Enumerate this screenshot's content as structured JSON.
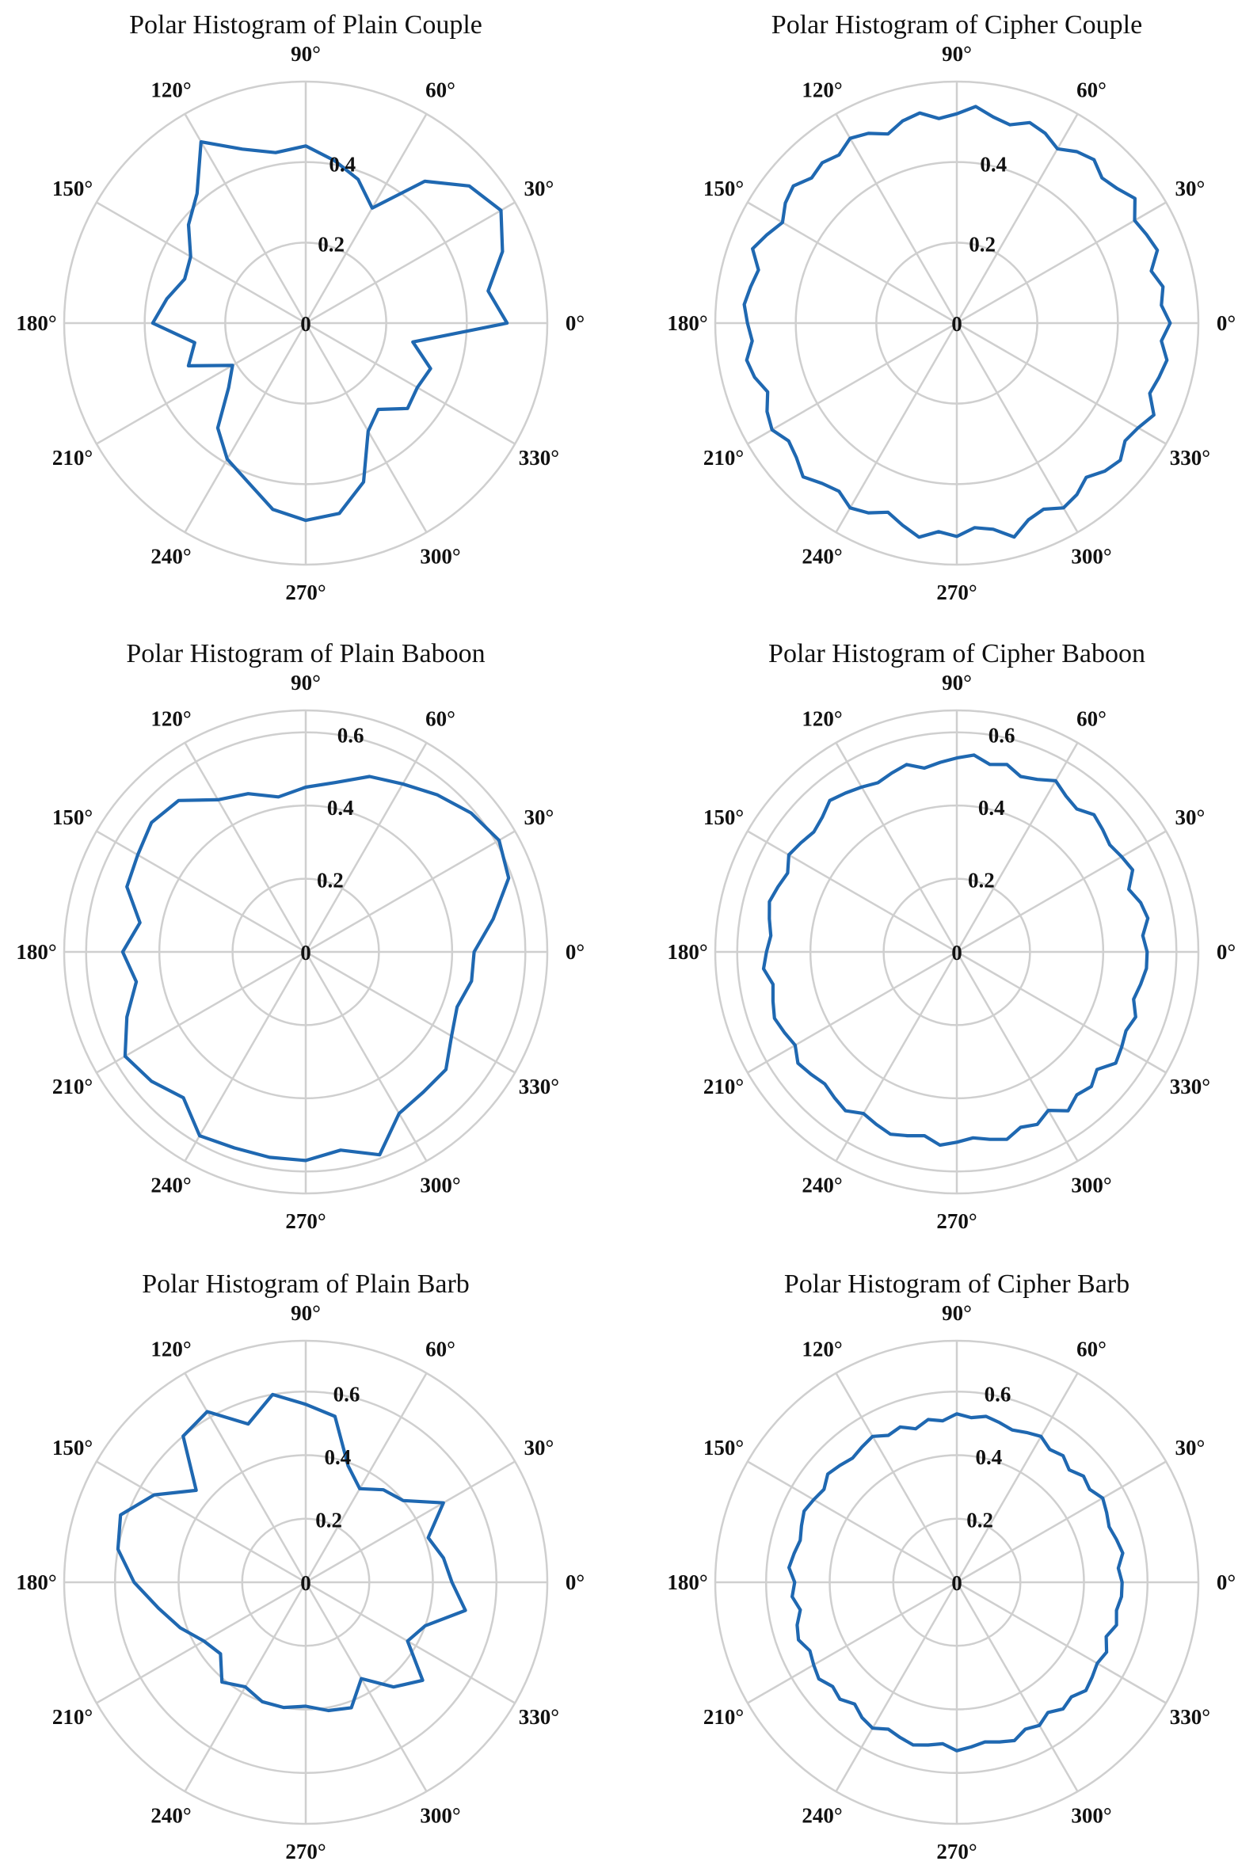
{
  "line_color": "#1f68b1",
  "grid_color": "#cfcfcf",
  "chart_data": [
    {
      "type": "polar-line",
      "title": "Polar Histogram of Plain Couple",
      "theta_tick_labels": [
        "0°",
        "30°",
        "60°",
        "90°",
        "120°",
        "150°",
        "180°",
        "210°",
        "240°",
        "270°",
        "300°",
        "330°"
      ],
      "r_ticks": [
        0.2,
        0.4
      ],
      "r_tick_labels": [
        "0",
        "0.2",
        "0.4"
      ],
      "rlim": [
        0,
        0.6
      ],
      "grid": true,
      "r": [
        0.5,
        0.46,
        0.52,
        0.56,
        0.53,
        0.46,
        0.33,
        0.38,
        0.41,
        0.44,
        0.43,
        0.46,
        0.52,
        0.42,
        0.38,
        0.33,
        0.32,
        0.35,
        0.38,
        0.28,
        0.31,
        0.21,
        0.25,
        0.34,
        0.39,
        0.42,
        0.47,
        0.49,
        0.48,
        0.42,
        0.31,
        0.28,
        0.33,
        0.32,
        0.33,
        0.27
      ]
    },
    {
      "type": "polar-line",
      "title": "Polar Histogram of Cipher Couple",
      "theta_tick_labels": [
        "0°",
        "30°",
        "60°",
        "90°",
        "120°",
        "150°",
        "180°",
        "210°",
        "240°",
        "270°",
        "300°",
        "330°"
      ],
      "r_ticks": [
        0.2,
        0.4
      ],
      "r_tick_labels": [
        "0",
        "0.2",
        "0.4"
      ],
      "rlim": [
        0,
        0.6
      ],
      "grid": true,
      "r": [
        0.53,
        0.51,
        0.52,
        0.5,
        0.53,
        0.52,
        0.51,
        0.54,
        0.52,
        0.51,
        0.53,
        0.52,
        0.5,
        0.52,
        0.53,
        0.51,
        0.52,
        0.54,
        0.52,
        0.51,
        0.53,
        0.52,
        0.5,
        0.52,
        0.53,
        0.51,
        0.52,
        0.51,
        0.53,
        0.52,
        0.5,
        0.52,
        0.54,
        0.51,
        0.52,
        0.53,
        0.52,
        0.51,
        0.53,
        0.52,
        0.5,
        0.52,
        0.53,
        0.51,
        0.52,
        0.54,
        0.52,
        0.51,
        0.53,
        0.52,
        0.5,
        0.52,
        0.54,
        0.52,
        0.53,
        0.51,
        0.52,
        0.55,
        0.52,
        0.51,
        0.53,
        0.52,
        0.5,
        0.52,
        0.53,
        0.51,
        0.52,
        0.54,
        0.51,
        0.52,
        0.53,
        0.51
      ]
    },
    {
      "type": "polar-line",
      "title": "Polar Histogram of Plain Baboon",
      "theta_tick_labels": [
        "0°",
        "30°",
        "60°",
        "90°",
        "120°",
        "150°",
        "180°",
        "210°",
        "240°",
        "270°",
        "300°",
        "330°"
      ],
      "r_ticks": [
        0.2,
        0.4,
        0.6
      ],
      "r_tick_labels": [
        "0",
        "0.2",
        "0.4",
        "0.6"
      ],
      "rlim": [
        0,
        0.66
      ],
      "grid": true,
      "r": [
        0.46,
        0.52,
        0.59,
        0.61,
        0.59,
        0.56,
        0.53,
        0.51,
        0.47,
        0.45,
        0.43,
        0.46,
        0.48,
        0.54,
        0.55,
        0.53,
        0.52,
        0.46,
        0.5,
        0.47,
        0.52,
        0.57,
        0.55,
        0.52,
        0.58,
        0.57,
        0.57,
        0.57,
        0.55,
        0.59,
        0.51,
        0.5,
        0.5,
        0.46,
        0.44,
        0.46
      ]
    },
    {
      "type": "polar-line",
      "title": "Polar Histogram of Cipher Baboon",
      "theta_tick_labels": [
        "0°",
        "30°",
        "60°",
        "90°",
        "120°",
        "150°",
        "180°",
        "210°",
        "240°",
        "270°",
        "300°",
        "330°"
      ],
      "r_ticks": [
        0.2,
        0.4,
        0.6
      ],
      "r_tick_labels": [
        "0",
        "0.2",
        "0.4",
        "0.6"
      ],
      "rlim": [
        0,
        0.66
      ],
      "grid": true,
      "r": [
        0.52,
        0.51,
        0.53,
        0.52,
        0.5,
        0.53,
        0.52,
        0.51,
        0.52,
        0.53,
        0.51,
        0.52,
        0.54,
        0.52,
        0.51,
        0.53,
        0.52,
        0.54,
        0.53,
        0.52,
        0.51,
        0.53,
        0.52,
        0.51,
        0.52,
        0.53,
        0.54,
        0.52,
        0.51,
        0.52,
        0.53,
        0.51,
        0.52,
        0.53,
        0.52,
        0.51,
        0.52,
        0.53,
        0.51,
        0.52,
        0.53,
        0.52,
        0.51,
        0.53,
        0.52,
        0.51,
        0.52,
        0.53,
        0.51,
        0.52,
        0.53,
        0.52,
        0.51,
        0.53,
        0.52,
        0.51,
        0.52,
        0.53,
        0.51,
        0.52,
        0.5,
        0.53,
        0.51,
        0.52,
        0.5,
        0.53,
        0.52,
        0.51,
        0.52,
        0.5,
        0.51,
        0.52
      ]
    },
    {
      "type": "polar-line",
      "title": "Polar Histogram of Plain Barb",
      "theta_tick_labels": [
        "0°",
        "30°",
        "60°",
        "90°",
        "120°",
        "150°",
        "180°",
        "210°",
        "240°",
        "270°",
        "300°",
        "330°"
      ],
      "r_ticks": [
        0.2,
        0.4,
        0.6
      ],
      "r_tick_labels": [
        "0",
        "0.2",
        "0.4",
        "0.6"
      ],
      "rlim": [
        0,
        0.76
      ],
      "grid": true,
      "r": [
        0.46,
        0.44,
        0.41,
        0.5,
        0.4,
        0.38,
        0.34,
        0.39,
        0.53,
        0.56,
        0.6,
        0.53,
        0.62,
        0.6,
        0.45,
        0.55,
        0.62,
        0.6,
        0.54,
        0.47,
        0.42,
        0.37,
        0.35,
        0.41,
        0.38,
        0.4,
        0.4,
        0.39,
        0.41,
        0.42,
        0.35,
        0.43,
        0.48,
        0.37,
        0.4,
        0.51
      ]
    },
    {
      "type": "polar-line",
      "title": "Polar Histogram of Cipher Barb",
      "theta_tick_labels": [
        "0°",
        "30°",
        "60°",
        "90°",
        "120°",
        "150°",
        "180°",
        "210°",
        "240°",
        "270°",
        "300°",
        "330°"
      ],
      "r_ticks": [
        0.2,
        0.4,
        0.6
      ],
      "r_tick_labels": [
        "0",
        "0.2",
        "0.4",
        "0.6"
      ],
      "rlim": [
        0,
        0.76
      ],
      "grid": true,
      "r": [
        0.52,
        0.51,
        0.53,
        0.52,
        0.51,
        0.52,
        0.53,
        0.51,
        0.52,
        0.5,
        0.52,
        0.51,
        0.53,
        0.52,
        0.51,
        0.52,
        0.53,
        0.52,
        0.53,
        0.51,
        0.52,
        0.5,
        0.52,
        0.51,
        0.53,
        0.52,
        0.51,
        0.52,
        0.53,
        0.51,
        0.52,
        0.53,
        0.52,
        0.51,
        0.52,
        0.53,
        0.51,
        0.52,
        0.5,
        0.52,
        0.53,
        0.51,
        0.52,
        0.53,
        0.51,
        0.52,
        0.5,
        0.52,
        0.53,
        0.51,
        0.52,
        0.53,
        0.52,
        0.51,
        0.53,
        0.52,
        0.51,
        0.52,
        0.53,
        0.51,
        0.52,
        0.5,
        0.52,
        0.51,
        0.53,
        0.52,
        0.51,
        0.52,
        0.5,
        0.52,
        0.51,
        0.52
      ]
    }
  ]
}
